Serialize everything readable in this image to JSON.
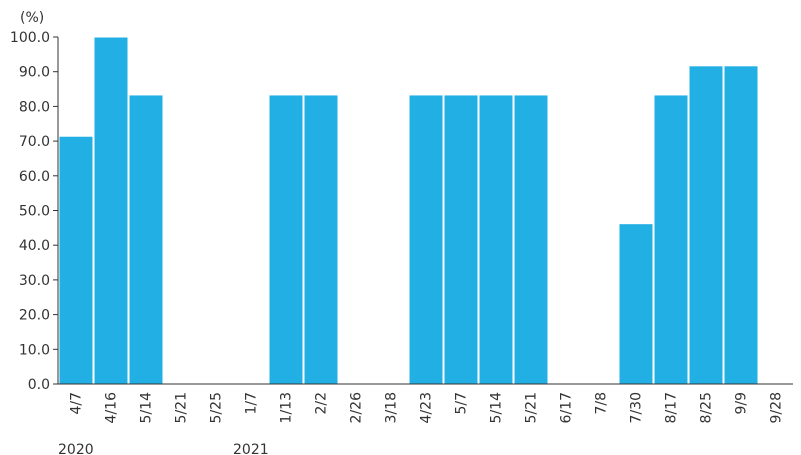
{
  "chart_data": {
    "type": "bar",
    "unit": "(%)",
    "categories": [
      "4/7",
      "4/16",
      "5/14",
      "5/21",
      "5/25",
      "1/7",
      "1/13",
      "2/2",
      "2/26",
      "3/18",
      "4/23",
      "5/7",
      "5/14",
      "5/21",
      "6/17",
      "7/8",
      "7/30",
      "8/17",
      "8/25",
      "9/9",
      "9/28"
    ],
    "values": [
      71.4,
      100.0,
      83.3,
      0,
      0,
      0,
      83.3,
      83.3,
      0,
      0,
      83.3,
      83.3,
      83.3,
      83.3,
      0,
      0,
      46.2,
      83.3,
      91.7,
      91.7,
      0
    ],
    "ylim": [
      0,
      100
    ],
    "yticks": [
      "0.0",
      "10.0",
      "20.0",
      "30.0",
      "40.0",
      "50.0",
      "60.0",
      "70.0",
      "80.0",
      "90.0",
      "100.0"
    ],
    "year_labels": [
      {
        "label": "2020",
        "category_index": 0
      },
      {
        "label": "2021",
        "category_index": 5
      }
    ],
    "colors": {
      "bar": "#21afe4",
      "axis": "#333333",
      "text": "#333333"
    },
    "grid": false,
    "legend": "none"
  }
}
